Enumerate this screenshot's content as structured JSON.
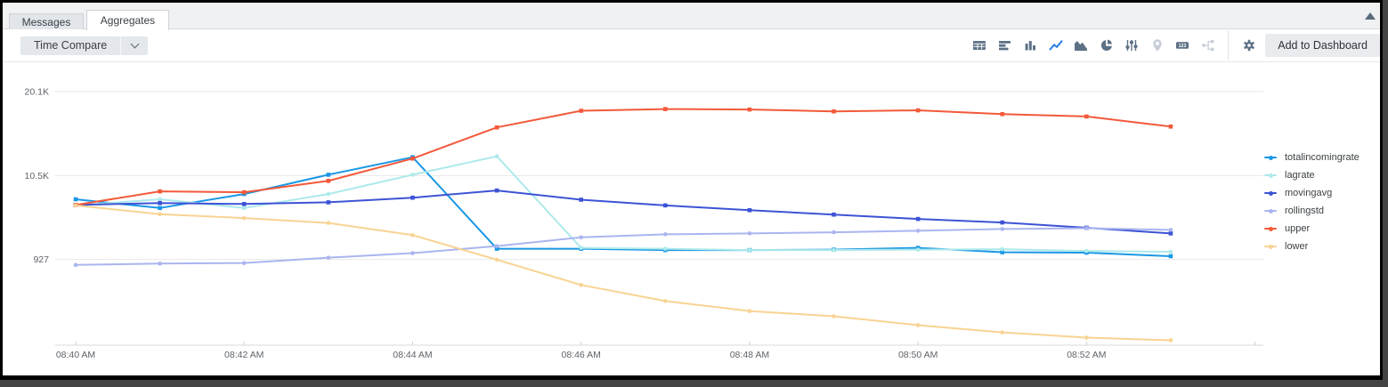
{
  "header": {
    "tabs": [
      {
        "label": "Messages",
        "active": false
      },
      {
        "label": "Aggregates",
        "active": true
      }
    ]
  },
  "toolbar": {
    "time_compare_label": "Time Compare",
    "add_to_dashboard_label": "Add to Dashboard",
    "active_icon_color": "#2b7ce9",
    "icon_color": "#5d7186",
    "disabled_icon_color": "#c7ced8",
    "icons": [
      {
        "name": "table-icon",
        "state": "default"
      },
      {
        "name": "bar-chart-horizontal-icon",
        "state": "default"
      },
      {
        "name": "bar-chart-icon",
        "state": "default"
      },
      {
        "name": "line-chart-icon",
        "state": "active"
      },
      {
        "name": "area-chart-icon",
        "state": "default"
      },
      {
        "name": "pie-chart-icon",
        "state": "default"
      },
      {
        "name": "sliders-icon",
        "state": "default"
      },
      {
        "name": "map-pin-icon",
        "state": "disabled"
      },
      {
        "name": "number-badge-icon",
        "state": "default",
        "text": "123"
      },
      {
        "name": "cluster-icon",
        "state": "disabled"
      },
      {
        "name": "gear-icon",
        "state": "default"
      }
    ]
  },
  "chart_data": {
    "type": "line",
    "categories": [
      "08:40 AM",
      "08:41 AM",
      "08:42 AM",
      "08:43 AM",
      "08:44 AM",
      "08:45 AM",
      "08:46 AM",
      "08:47 AM",
      "08:48 AM",
      "08:49 AM",
      "08:50 AM",
      "08:51 AM",
      "08:52 AM",
      "08:53 AM"
    ],
    "x_tick_labels": [
      "08:40 AM",
      "08:42 AM",
      "08:44 AM",
      "08:46 AM",
      "08:48 AM",
      "08:50 AM",
      "08:52 AM"
    ],
    "y_ticks": [
      {
        "label": "20.1K",
        "value": 20100
      },
      {
        "label": "10.5K",
        "value": 10500
      },
      {
        "label": "927",
        "value": 927
      }
    ],
    "ylim": [
      -8860,
      20900
    ],
    "grid": "horizontal-only",
    "legend_position": "right",
    "series": [
      {
        "name": "totalincomingrate",
        "color": "#1a97e4",
        "marker": "square",
        "values": [
          7800,
          6800,
          8400,
          10600,
          12600,
          2150,
          2150,
          2000,
          2000,
          2050,
          2250,
          1750,
          1700,
          1300
        ]
      },
      {
        "name": "lagrate",
        "color": "#ade9ea",
        "marker": "circle",
        "values": [
          7100,
          7800,
          6800,
          8400,
          10600,
          12700,
          2250,
          2150,
          2000,
          2000,
          2050,
          2100,
          1900,
          1800
        ]
      },
      {
        "name": "movingavg",
        "color": "#3d53d5",
        "marker": "square",
        "values": [
          7150,
          7370,
          7260,
          7450,
          7980,
          8800,
          7750,
          7100,
          6550,
          6050,
          5550,
          5150,
          4550,
          3900
        ]
      },
      {
        "name": "rollingstd",
        "color": "#aab5ef",
        "marker": "circle",
        "values": [
          300,
          450,
          520,
          1130,
          1650,
          2450,
          3450,
          3800,
          3900,
          4030,
          4200,
          4400,
          4500,
          4300
        ]
      },
      {
        "name": "upper",
        "color": "#f2593a",
        "marker": "square",
        "values": [
          7150,
          8700,
          8600,
          9900,
          12450,
          16000,
          17900,
          18100,
          18050,
          17830,
          17950,
          17520,
          17250,
          16100
        ]
      },
      {
        "name": "lower",
        "color": "#f8d392",
        "marker": "circle",
        "values": [
          7100,
          6100,
          5650,
          5100,
          3700,
          900,
          -1980,
          -3820,
          -4960,
          -5560,
          -6570,
          -7400,
          -8000,
          -8300
        ]
      }
    ]
  }
}
